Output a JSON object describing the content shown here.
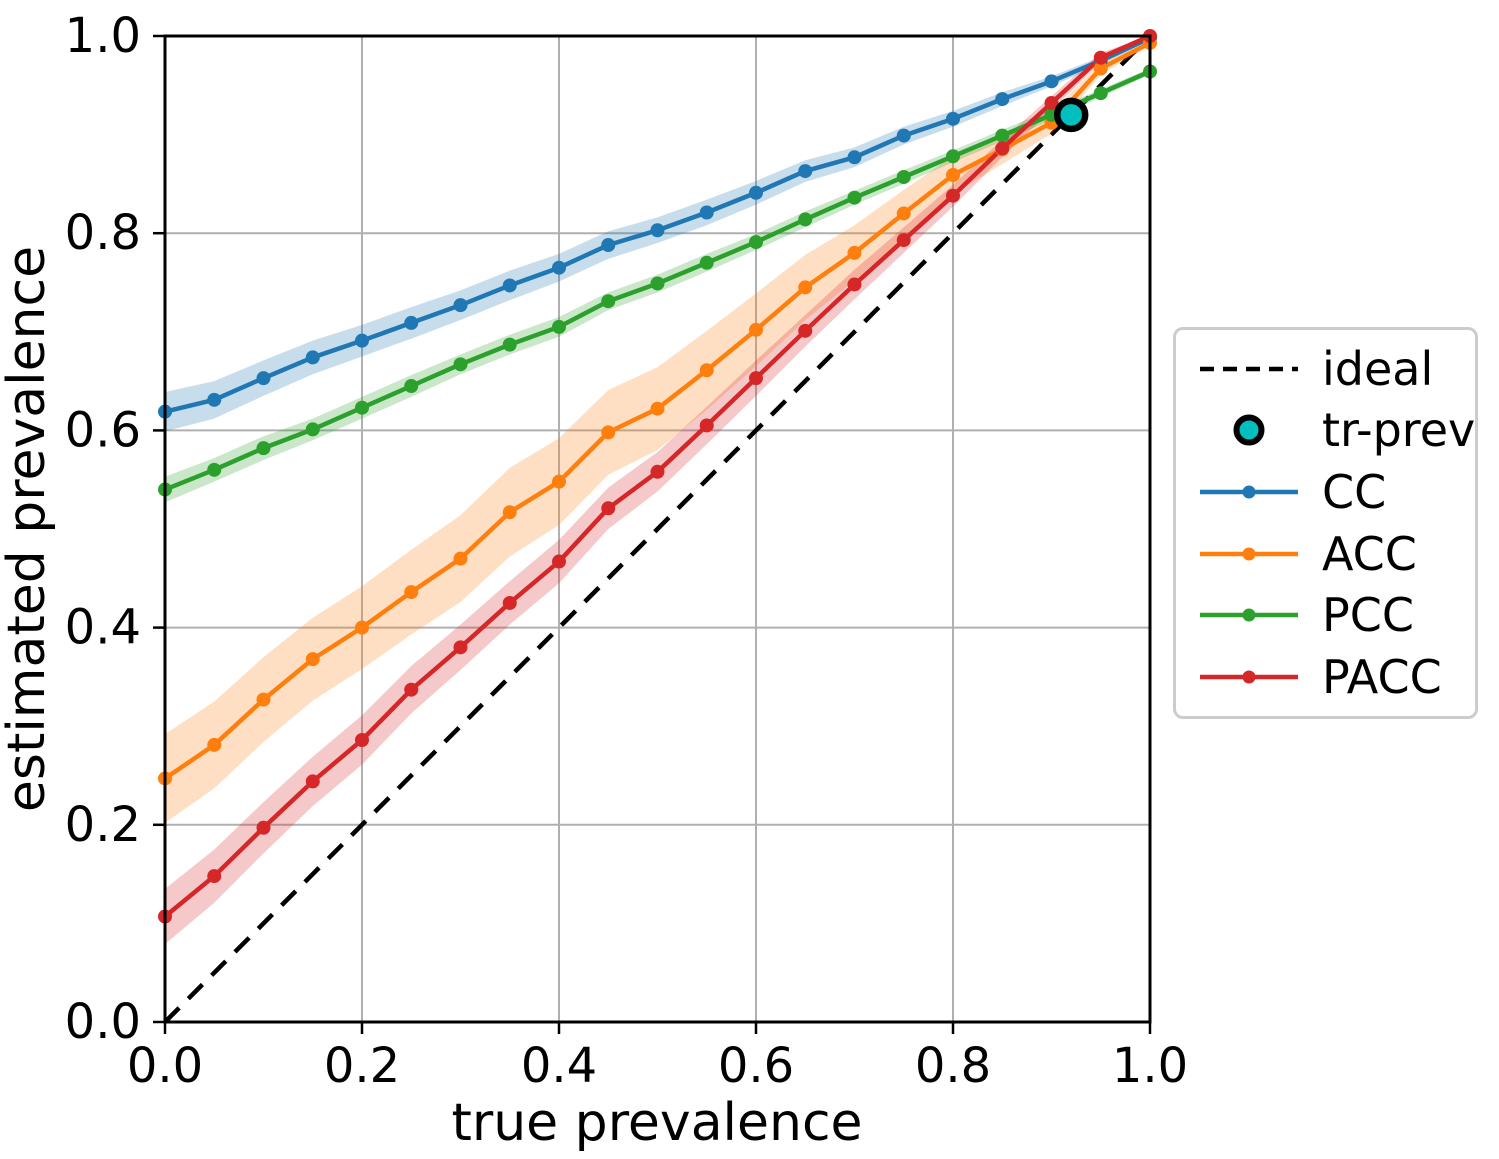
{
  "chart_data": {
    "type": "line",
    "title": "",
    "xlabel": "true prevalence",
    "ylabel": "estimated prevalence",
    "xlim": [
      0.0,
      1.0
    ],
    "ylim": [
      0.0,
      1.0
    ],
    "grid": true,
    "grid_color": "#b0b0b0",
    "background_color": "#ffffff",
    "x_tick_labels": [
      "0.0",
      "0.2",
      "0.4",
      "0.6",
      "0.8",
      "1.0"
    ],
    "y_tick_labels": [
      "0.0",
      "0.2",
      "0.4",
      "0.6",
      "0.8",
      "1.0"
    ],
    "x_ticks": [
      0.0,
      0.2,
      0.4,
      0.6,
      0.8,
      1.0
    ],
    "y_ticks": [
      0.0,
      0.2,
      0.4,
      0.6,
      0.8,
      1.0
    ],
    "band_alpha": 0.25,
    "x": [
      0.0,
      0.05,
      0.1,
      0.15,
      0.2,
      0.25,
      0.3,
      0.35,
      0.4,
      0.45,
      0.5,
      0.55,
      0.6,
      0.65,
      0.7,
      0.75,
      0.8,
      0.85,
      0.9,
      0.95,
      1.0
    ],
    "series": [
      {
        "name": "CC",
        "color": "#1f77b4",
        "values": [
          0.619,
          0.631,
          0.653,
          0.674,
          0.691,
          0.709,
          0.727,
          0.747,
          0.765,
          0.788,
          0.803,
          0.821,
          0.841,
          0.863,
          0.877,
          0.899,
          0.916,
          0.936,
          0.954,
          0.975,
          0.998
        ],
        "band_halfwidth": [
          0.02,
          0.019,
          0.018,
          0.017,
          0.016,
          0.016,
          0.015,
          0.015,
          0.014,
          0.014,
          0.013,
          0.013,
          0.012,
          0.011,
          0.01,
          0.009,
          0.008,
          0.007,
          0.005,
          0.004,
          0.002
        ]
      },
      {
        "name": "ACC",
        "color": "#ff7f0e",
        "values": [
          0.247,
          0.281,
          0.327,
          0.368,
          0.4,
          0.436,
          0.47,
          0.517,
          0.548,
          0.598,
          0.622,
          0.661,
          0.702,
          0.745,
          0.78,
          0.82,
          0.859,
          0.885,
          0.912,
          0.967,
          0.993
        ],
        "band_halfwidth": [
          0.045,
          0.044,
          0.043,
          0.042,
          0.042,
          0.043,
          0.044,
          0.045,
          0.044,
          0.043,
          0.042,
          0.04,
          0.037,
          0.033,
          0.028,
          0.024,
          0.019,
          0.015,
          0.011,
          0.006,
          0.003
        ]
      },
      {
        "name": "PCC",
        "color": "#2ca02c",
        "values": [
          0.54,
          0.56,
          0.582,
          0.601,
          0.623,
          0.645,
          0.667,
          0.687,
          0.705,
          0.731,
          0.749,
          0.77,
          0.791,
          0.814,
          0.836,
          0.857,
          0.878,
          0.899,
          0.92,
          0.942,
          0.964
        ],
        "band_halfwidth": [
          0.013,
          0.012,
          0.012,
          0.011,
          0.011,
          0.011,
          0.01,
          0.01,
          0.01,
          0.009,
          0.009,
          0.009,
          0.008,
          0.008,
          0.007,
          0.007,
          0.006,
          0.006,
          0.005,
          0.004,
          0.003
        ]
      },
      {
        "name": "PACC",
        "color": "#d62728",
        "values": [
          0.107,
          0.148,
          0.197,
          0.244,
          0.286,
          0.337,
          0.38,
          0.425,
          0.467,
          0.521,
          0.558,
          0.605,
          0.653,
          0.701,
          0.748,
          0.793,
          0.838,
          0.886,
          0.932,
          0.978,
          1.0
        ],
        "band_halfwidth": [
          0.028,
          0.027,
          0.026,
          0.025,
          0.025,
          0.024,
          0.023,
          0.022,
          0.022,
          0.021,
          0.02,
          0.019,
          0.018,
          0.016,
          0.015,
          0.013,
          0.011,
          0.009,
          0.007,
          0.005,
          0.002
        ]
      }
    ],
    "ideal_line": {
      "label": "ideal",
      "from": [
        0.0,
        0.0
      ],
      "to": [
        1.0,
        1.0
      ],
      "style": "dashed",
      "color": "#000000"
    },
    "tr_prev": {
      "label": "tr-prev",
      "x": 0.92,
      "y": 0.92,
      "fill_color": "#00bfbf",
      "edge_color": "#000000"
    },
    "legend": {
      "position": "center-right-outside",
      "entries": [
        "ideal",
        "tr-prev",
        "CC",
        "ACC",
        "PCC",
        "PACC"
      ]
    }
  }
}
